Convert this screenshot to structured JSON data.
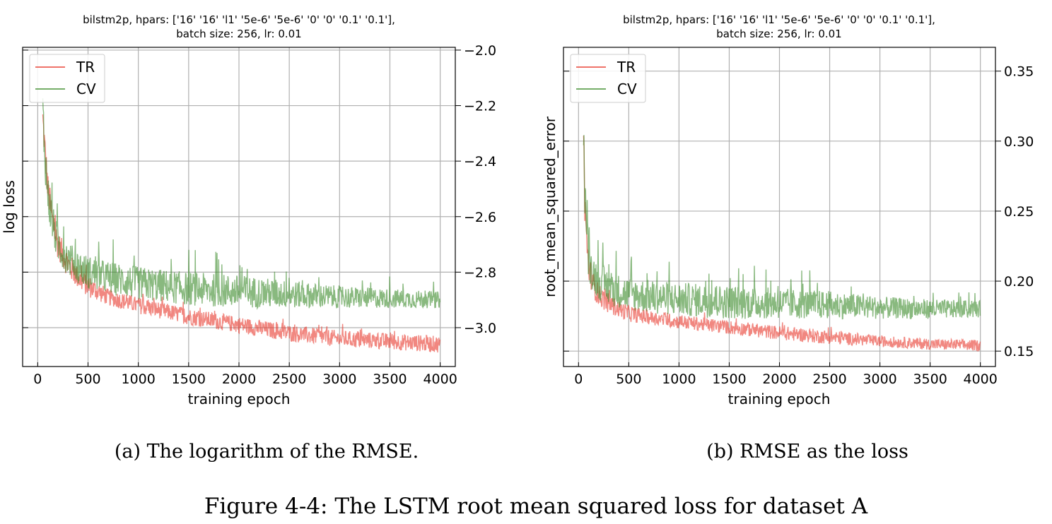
{
  "figure": {
    "caption": "Figure 4-4: The LSTM root mean squared loss for dataset A"
  },
  "colors": {
    "tr": "#e8372b",
    "cv": "#3a8a2a",
    "grid": "#b0b0b0"
  },
  "chart_data": [
    {
      "type": "line",
      "subcaption": "(a) The logarithm of the RMSE.",
      "title_line1": "bilstm2p, hpars: ['16' '16' 'l1' '5e-6' '5e-6' '0' '0' '0.1' '0.1'],",
      "title_line2": "batch size: 256, lr: 0.01",
      "xlabel": "training epoch",
      "ylabel": "log loss",
      "xlim": [
        -150,
        4150
      ],
      "ylim": [
        -3.14,
        -1.99
      ],
      "y_axis_side": "right",
      "grid": true,
      "legend": "top-left",
      "x_ticks": [
        0,
        500,
        1000,
        1500,
        2000,
        2500,
        3000,
        3500,
        4000
      ],
      "x_tick_labels": [
        "0",
        "500",
        "1000",
        "1500",
        "2000",
        "2500",
        "3000",
        "3500",
        "4000"
      ],
      "y_ticks": [
        -2.0,
        -2.2,
        -2.4,
        -2.6,
        -2.8,
        -3.0
      ],
      "y_tick_labels": [
        "−2.0",
        "−2.2",
        "−2.4",
        "−2.6",
        "−2.8",
        "−3.0"
      ],
      "series": [
        {
          "name": "TR",
          "x": [
            50,
            60,
            80,
            100,
            150,
            200,
            300,
            400,
            500,
            700,
            1000,
            1500,
            2000,
            2500,
            3000,
            3500,
            4000
          ],
          "y": [
            -2.25,
            -2.3,
            -2.4,
            -2.5,
            -2.62,
            -2.7,
            -2.77,
            -2.82,
            -2.85,
            -2.89,
            -2.92,
            -2.96,
            -2.99,
            -3.02,
            -3.04,
            -3.05,
            -3.06
          ],
          "spread": [
            0.06,
            0.06,
            0.06,
            0.06,
            0.06,
            0.05,
            0.05,
            0.04,
            0.04,
            0.03,
            0.03,
            0.03,
            0.03,
            0.03,
            0.03,
            0.03,
            0.03
          ]
        },
        {
          "name": "CV",
          "x": [
            50,
            60,
            80,
            100,
            150,
            200,
            300,
            400,
            500,
            700,
            1000,
            1500,
            2000,
            2500,
            3000,
            3500,
            4000
          ],
          "y": [
            -2.22,
            -2.3,
            -2.42,
            -2.52,
            -2.63,
            -2.7,
            -2.75,
            -2.78,
            -2.8,
            -2.82,
            -2.84,
            -2.86,
            -2.87,
            -2.88,
            -2.89,
            -2.895,
            -2.9
          ],
          "spread": [
            0.1,
            0.09,
            0.08,
            0.08,
            0.07,
            0.07,
            0.06,
            0.06,
            0.06,
            0.06,
            0.06,
            0.06,
            0.06,
            0.05,
            0.04,
            0.035,
            0.03
          ]
        }
      ]
    },
    {
      "type": "line",
      "subcaption": "(b) RMSE as the loss",
      "title_line1": "bilstm2p, hpars: ['16' '16' 'l1' '5e-6' '5e-6' '0' '0' '0.1' '0.1'],",
      "title_line2": "batch size: 256, lr: 0.01",
      "xlabel": "training epoch",
      "ylabel": "root_mean_squared_error",
      "xlim": [
        -150,
        4150
      ],
      "ylim": [
        0.139,
        0.367
      ],
      "y_axis_side": "right",
      "grid": true,
      "legend": "top-left",
      "x_ticks": [
        0,
        500,
        1000,
        1500,
        2000,
        2500,
        3000,
        3500,
        4000
      ],
      "x_tick_labels": [
        "0",
        "500",
        "1000",
        "1500",
        "2000",
        "2500",
        "3000",
        "3500",
        "4000"
      ],
      "y_ticks": [
        0.15,
        0.2,
        0.25,
        0.3,
        0.35
      ],
      "y_tick_labels": [
        "0.15",
        "0.20",
        "0.25",
        "0.30",
        "0.35"
      ],
      "series": [
        {
          "name": "TR",
          "x": [
            50,
            60,
            80,
            100,
            150,
            200,
            300,
            400,
            500,
            700,
            1000,
            1500,
            2000,
            2500,
            3000,
            3500,
            4000
          ],
          "y": [
            0.3,
            0.26,
            0.23,
            0.21,
            0.197,
            0.19,
            0.184,
            0.18,
            0.177,
            0.174,
            0.171,
            0.167,
            0.163,
            0.16,
            0.157,
            0.155,
            0.154
          ],
          "spread": [
            0.02,
            0.015,
            0.012,
            0.01,
            0.009,
            0.008,
            0.007,
            0.006,
            0.006,
            0.005,
            0.005,
            0.005,
            0.005,
            0.005,
            0.004,
            0.004,
            0.004
          ]
        },
        {
          "name": "CV",
          "x": [
            50,
            60,
            80,
            100,
            150,
            200,
            300,
            400,
            500,
            700,
            1000,
            1500,
            2000,
            2500,
            3000,
            3500,
            4000
          ],
          "y": [
            0.32,
            0.27,
            0.24,
            0.215,
            0.205,
            0.2,
            0.196,
            0.193,
            0.191,
            0.189,
            0.187,
            0.185,
            0.184,
            0.183,
            0.181,
            0.18,
            0.18
          ],
          "spread": [
            0.03,
            0.02,
            0.018,
            0.015,
            0.014,
            0.013,
            0.013,
            0.012,
            0.012,
            0.012,
            0.012,
            0.012,
            0.011,
            0.01,
            0.008,
            0.007,
            0.006
          ]
        }
      ]
    }
  ]
}
